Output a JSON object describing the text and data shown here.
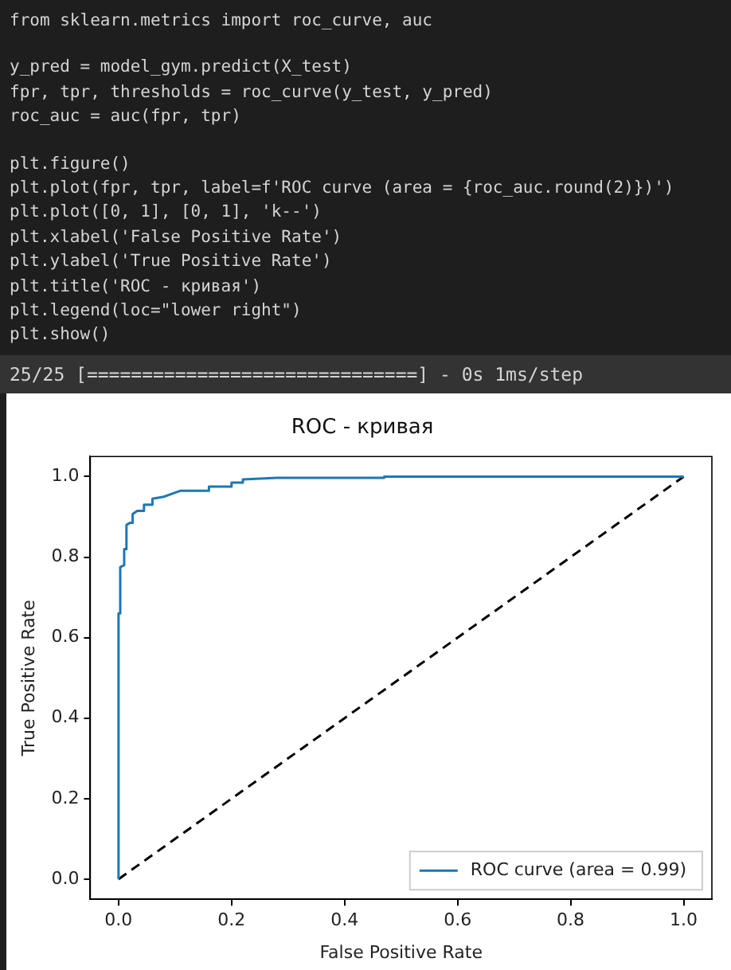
{
  "chart_data": {
    "type": "line",
    "title": "ROC - кривая",
    "xlabel": "False Positive Rate",
    "ylabel": "True Positive Rate",
    "annotations": [
      "from sklearn.metrics import roc_curve, auc",
      "y_pred = model_gym.predict(X_test)",
      "fpr, tpr, thresholds = roc_curve(y_test, y_pred)",
      "roc_auc = auc(fpr, tpr)",
      "plt.figure()",
      "plt.plot(fpr, tpr, label=f'ROC curve (area = {roc_auc.round(2)})')",
      "plt.plot([0, 1], [0, 1], 'k--')",
      "plt.xlabel('False Positive Rate')",
      "plt.ylabel('True Positive Rate')",
      "plt.title('ROC - кривая')",
      "plt.legend(loc=\"lower right\")",
      "plt.show()",
      "25/25 [==============================] - 0s 1ms/step"
    ],
    "series": [
      {
        "name": "ROC curve (area = 0.99)",
        "color": "#1f77b4",
        "line_style": "solid",
        "x": [
          0,
          0,
          0.003,
          0.003,
          0.01,
          0.01,
          0.014,
          0.014,
          0.02,
          0.025,
          0.025,
          0.033,
          0.045,
          0.045,
          0.06,
          0.06,
          0.08,
          0.1,
          0.11,
          0.16,
          0.16,
          0.2,
          0.2,
          0.22,
          0.22,
          0.28,
          0.47,
          0.47,
          1.0
        ],
        "values": [
          0,
          0.66,
          0.66,
          0.775,
          0.78,
          0.82,
          0.82,
          0.88,
          0.885,
          0.885,
          0.907,
          0.915,
          0.915,
          0.93,
          0.93,
          0.945,
          0.95,
          0.96,
          0.965,
          0.965,
          0.975,
          0.975,
          0.985,
          0.985,
          0.993,
          0.997,
          0.997,
          1.0,
          1.0
        ]
      },
      {
        "color": "#000000",
        "line_style": "dashed",
        "x": [
          0,
          1
        ],
        "values": [
          0,
          1
        ]
      }
    ],
    "xlim": [
      -0.05,
      1.05
    ],
    "ylim": [
      -0.05,
      1.05
    ],
    "xticks": [
      {
        "value": 0,
        "label": "0.0"
      },
      {
        "value": 0.2,
        "label": "0.2"
      },
      {
        "value": 0.4,
        "label": "0.4"
      },
      {
        "value": 0.6,
        "label": "0.6"
      },
      {
        "value": 0.8,
        "label": "0.8"
      },
      {
        "value": 1,
        "label": "1.0"
      }
    ],
    "yticks": [
      {
        "value": 0,
        "label": "0.0"
      },
      {
        "value": 0.2,
        "label": "0.2"
      },
      {
        "value": 0.4,
        "label": "0.4"
      },
      {
        "value": 0.6,
        "label": "0.6"
      },
      {
        "value": 0.8,
        "label": "0.8"
      },
      {
        "value": 1,
        "label": "1.0"
      }
    ],
    "grid": false,
    "legend": "bottom right",
    "marker": "none"
  }
}
